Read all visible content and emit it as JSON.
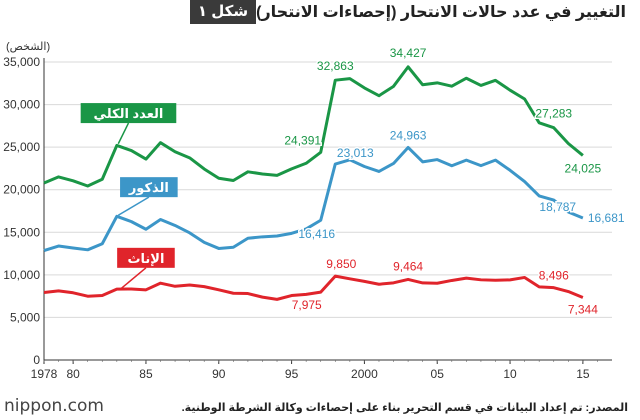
{
  "figure": {
    "tag": "شكل ١",
    "title": "التغيير في عدد حالات الانتحار (إحصاءات الانتحار)"
  },
  "footer": {
    "brand": "nippon.com",
    "source": "المصدر: تم إعداد البيانات في قسم التحرير بناء على إحصاءات وكالة الشرطة الوطنية."
  },
  "chart_data": {
    "type": "line",
    "ylabel": "(الشخص)",
    "xlim": [
      1978,
      2017
    ],
    "ylim": [
      0,
      35000
    ],
    "grid": true,
    "x_ticks": [
      {
        "x": 1978,
        "label": "1978"
      },
      {
        "x": 1980,
        "label": "80"
      },
      {
        "x": 1985,
        "label": "85"
      },
      {
        "x": 1990,
        "label": "90"
      },
      {
        "x": 1995,
        "label": "95"
      },
      {
        "x": 2000,
        "label": "2000"
      },
      {
        "x": 2005,
        "label": "05"
      },
      {
        "x": 2010,
        "label": "10"
      },
      {
        "x": 2015,
        "label": "15"
      }
    ],
    "y_ticks": [
      {
        "y": 0,
        "label": "0"
      },
      {
        "y": 5000,
        "label": "5,000"
      },
      {
        "y": 10000,
        "label": "10,000"
      },
      {
        "y": 15000,
        "label": "15,000"
      },
      {
        "y": 20000,
        "label": "20,000"
      },
      {
        "y": 25000,
        "label": "25,000"
      },
      {
        "y": 30000,
        "label": "30,000"
      },
      {
        "y": 35000,
        "label": "35,000"
      }
    ],
    "x": [
      1978,
      1979,
      1980,
      1981,
      1982,
      1983,
      1984,
      1985,
      1986,
      1987,
      1988,
      1989,
      1990,
      1991,
      1992,
      1993,
      1994,
      1995,
      1996,
      1997,
      1998,
      1999,
      2000,
      2001,
      2002,
      2003,
      2004,
      2005,
      2006,
      2007,
      2008,
      2009,
      2010,
      2011,
      2012,
      2013,
      2014,
      2015
    ],
    "series": [
      {
        "name": "العدد الكلي",
        "color": "#1a9646",
        "values": [
          20788,
          21503,
          21048,
          20434,
          21228,
          25202,
          24596,
          23599,
          25524,
          24460,
          23742,
          22436,
          21346,
          21084,
          22104,
          21851,
          21679,
          22445,
          23104,
          24391,
          32863,
          33048,
          31957,
          31042,
          32143,
          34427,
          32325,
          32552,
          32155,
          33093,
          32249,
          32845,
          31690,
          30651,
          27858,
          27283,
          25427,
          24025
        ],
        "labels": [
          {
            "x": 1997,
            "text": "24,391"
          },
          {
            "x": 1998,
            "text": "32,863"
          },
          {
            "x": 2003,
            "text": "34,427"
          },
          {
            "x": 2013,
            "text": "27,283"
          },
          {
            "x": 2015,
            "text": "24,025"
          }
        ]
      },
      {
        "name": "الذكور",
        "color": "#3c96c8",
        "values": [
          12859,
          13386,
          13155,
          12942,
          13654,
          16876,
          16251,
          15356,
          16499,
          15802,
          14934,
          13818,
          13102,
          13242,
          14296,
          14468,
          14560,
          14874,
          15393,
          16416,
          23013,
          23512,
          22727,
          22144,
          23080,
          24963,
          23272,
          23540,
          22813,
          23478,
          22831,
          23472,
          22283,
          20955,
          19273,
          18787,
          17386,
          16681
        ],
        "labels": [
          {
            "x": 1997,
            "text": "16,416"
          },
          {
            "x": 1998,
            "text": "23,013"
          },
          {
            "x": 2003,
            "text": "24,963"
          },
          {
            "x": 2013,
            "text": "18,787"
          },
          {
            "x": 2015,
            "text": "16,681"
          }
        ]
      },
      {
        "name": "الإناث",
        "color": "#e0242b",
        "values": [
          7929,
          8117,
          7893,
          7492,
          7574,
          8326,
          8345,
          8243,
          9025,
          8658,
          8808,
          8618,
          8244,
          7842,
          7808,
          7383,
          7119,
          7571,
          7711,
          7975,
          9850,
          9536,
          9230,
          8898,
          9063,
          9464,
          9053,
          9012,
          9342,
          9615,
          9418,
          9373,
          9407,
          9696,
          8585,
          8496,
          8041,
          7344
        ],
        "labels": [
          {
            "x": 1997,
            "text": "7,975"
          },
          {
            "x": 1998,
            "text": "9,850"
          },
          {
            "x": 2003,
            "text": "9,464"
          },
          {
            "x": 2013,
            "text": "8,496"
          },
          {
            "x": 2015,
            "text": "7,344"
          }
        ]
      }
    ]
  }
}
